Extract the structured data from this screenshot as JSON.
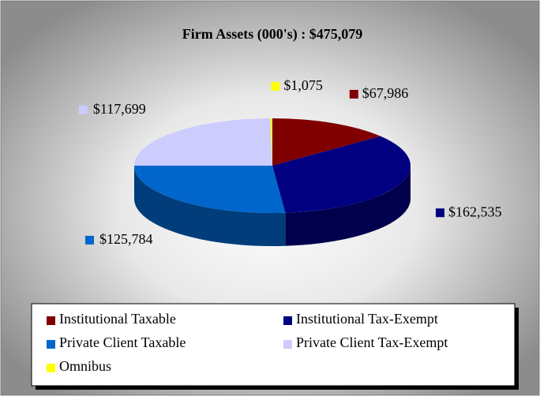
{
  "chart_data": {
    "type": "pie3d",
    "title": "Firm Assets (000's) : $475,079",
    "categories": [
      "Institutional Taxable",
      "Institutional Tax-Exempt",
      "Private Client Taxable",
      "Private Client Tax-Exempt",
      "Omnibus"
    ],
    "values": [
      67986,
      162535,
      125784,
      117699,
      1075
    ],
    "value_labels": [
      "$67,986",
      "$162,535",
      "$125,784",
      "$117,699",
      "$1,075"
    ],
    "colors": [
      "#800000",
      "#000080",
      "#0066cc",
      "#ccccff",
      "#ffff00"
    ],
    "legend": "bottom"
  }
}
